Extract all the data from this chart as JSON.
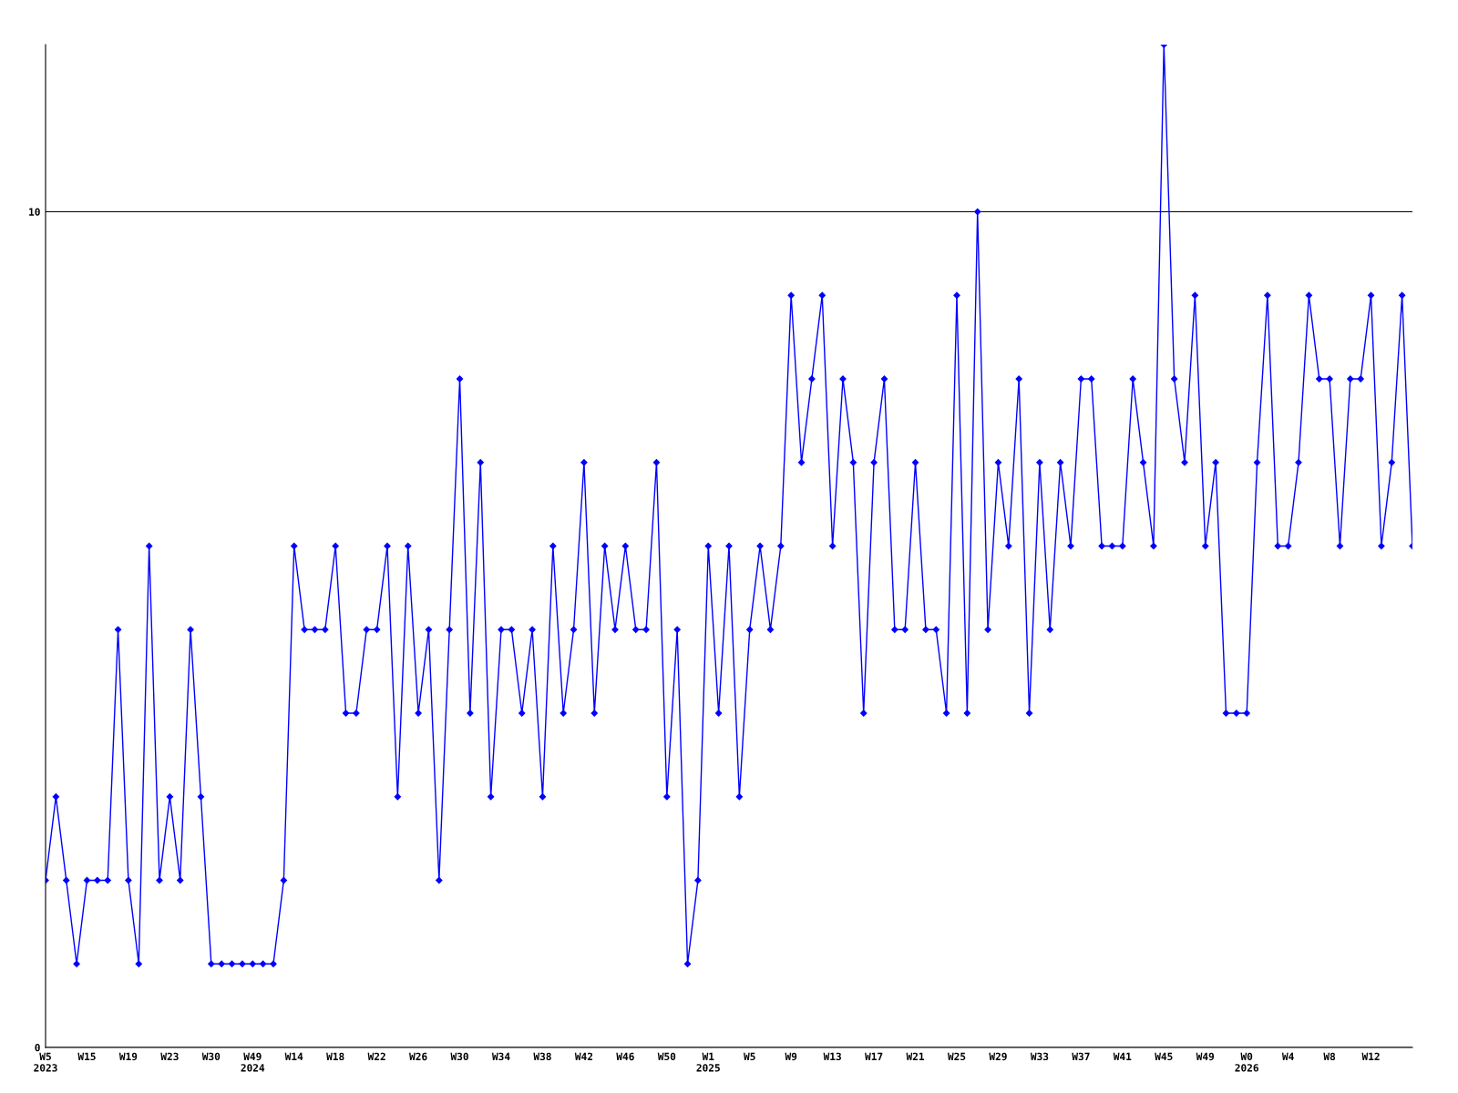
{
  "chart_data": {
    "type": "line",
    "categories": [
      "W5\n2023",
      null,
      null,
      null,
      "W15",
      null,
      null,
      null,
      "W19",
      null,
      null,
      null,
      "W23",
      null,
      null,
      null,
      "W30",
      null,
      null,
      null,
      "W49\n2024",
      null,
      null,
      null,
      "W14",
      null,
      null,
      null,
      "W18",
      null,
      null,
      null,
      "W22",
      null,
      null,
      null,
      "W26",
      null,
      null,
      null,
      "W30",
      null,
      null,
      null,
      "W34",
      null,
      null,
      null,
      "W38",
      null,
      null,
      null,
      "W42",
      null,
      null,
      null,
      "W46",
      null,
      null,
      null,
      "W50",
      null,
      null,
      null,
      "W1\n2025",
      null,
      null,
      null,
      "W5",
      null,
      null,
      null,
      "W9",
      null,
      null,
      null,
      "W13",
      null,
      null,
      null,
      "W17",
      null,
      null,
      null,
      "W21",
      null,
      null,
      null,
      "W25",
      null,
      null,
      null,
      "W29",
      null,
      null,
      null,
      "W33",
      null,
      null,
      null,
      "W37",
      null,
      null,
      null,
      "W41",
      null,
      null,
      null,
      "W45",
      null,
      null,
      null,
      "W49",
      null,
      null,
      null,
      "W0\n2026",
      null,
      null,
      null,
      "W4",
      null,
      null,
      null,
      "W8",
      null,
      null,
      null,
      "W12",
      null,
      null,
      null,
      null
    ],
    "series": [
      {
        "color": "#0000ff",
        "values": [
          2,
          3,
          2,
          1,
          2,
          2,
          2,
          5,
          2,
          1,
          6,
          2,
          3,
          2,
          5,
          3,
          1,
          1,
          1,
          1,
          1,
          1,
          1,
          2,
          6,
          5,
          5,
          5,
          6,
          4,
          4,
          5,
          5,
          6,
          3,
          6,
          4,
          5,
          2,
          5,
          8,
          4,
          7,
          3,
          5,
          5,
          4,
          5,
          3,
          6,
          4,
          5,
          7,
          4,
          6,
          5,
          6,
          5,
          5,
          7,
          3,
          5,
          1,
          2,
          6,
          4,
          6,
          3,
          5,
          6,
          5,
          6,
          9,
          7,
          8,
          9,
          6,
          8,
          7,
          4,
          7,
          8,
          5,
          5,
          7,
          5,
          5,
          4,
          9,
          4,
          10,
          5,
          7,
          6,
          8,
          4,
          7,
          5,
          7,
          6,
          8,
          8,
          6,
          6,
          6,
          8,
          7,
          6,
          12,
          8,
          7,
          9,
          6,
          7,
          4,
          4,
          4,
          7,
          9,
          6,
          6,
          7,
          9,
          8,
          8,
          6,
          8,
          8,
          9,
          6,
          7,
          9,
          6
        ]
      }
    ],
    "ylim": [
      0,
      12
    ],
    "yticks": [
      0,
      10
    ],
    "grid": "y",
    "marker": "diamond",
    "line_style": "solid"
  }
}
